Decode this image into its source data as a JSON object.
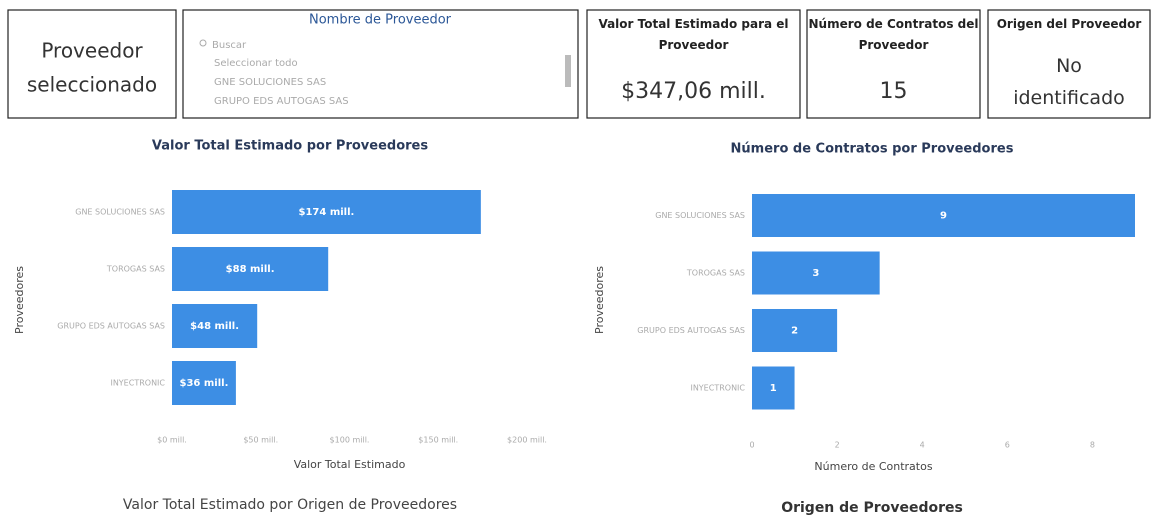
{
  "selected_card": {
    "text": "Proveedor seleccionado"
  },
  "slicer": {
    "title": "Nombre de Proveedor",
    "search": "Buscar",
    "items": [
      "Seleccionar todo",
      "GNE SOLUCIONES SAS",
      "GRUPO EDS AUTOGAS SAS"
    ]
  },
  "cards": [
    {
      "title": "Valor Total Estimado para el Proveedor",
      "value": "$347,06 mill."
    },
    {
      "title": "Número de Contratos del Proveedor",
      "value": "15"
    },
    {
      "title": "Origen del Proveedor",
      "value": "No identificado"
    }
  ],
  "chart_data": [
    {
      "type": "hbar",
      "title": "Valor Total Estimado por Proveedores",
      "categories": [
        "GNE SOLUCIONES SAS",
        "TOROGAS SAS",
        "GRUPO EDS AUTOGAS SAS",
        "INYECTRONIC"
      ],
      "values": [
        174,
        88,
        48,
        36
      ],
      "value_labels": [
        "$174 mill.",
        "$88 mill.",
        "$48 mill.",
        "$36 mill."
      ],
      "color": "#3d8ee4",
      "xlabel": "Valor Total Estimado",
      "ylabel": "Proveedores",
      "xlim": [
        0,
        200
      ],
      "xticks": [
        {
          "value": 0,
          "label": "$0 mill."
        },
        {
          "value": 50,
          "label": "$50 mill."
        },
        {
          "value": 100,
          "label": "$100 mill."
        },
        {
          "value": 150,
          "label": "$150 mill."
        },
        {
          "value": 200,
          "label": "$200 mill."
        }
      ]
    },
    {
      "type": "hbar",
      "title": "Número de Contratos por Proveedores",
      "categories": [
        "GNE SOLUCIONES SAS",
        "TOROGAS SAS",
        "GRUPO EDS AUTOGAS SAS",
        "INYECTRONIC"
      ],
      "values": [
        9,
        3,
        2,
        1
      ],
      "color": "#3d8ee4",
      "xlabel": "Número de Contratos",
      "ylabel": "Proveedores",
      "xlim": [
        0,
        9
      ],
      "xticks": [
        0,
        2,
        4,
        6,
        8
      ]
    }
  ],
  "bottom_titles": [
    "Valor Total Estimado por Origen de Proveedores",
    "Origen de Proveedores"
  ]
}
